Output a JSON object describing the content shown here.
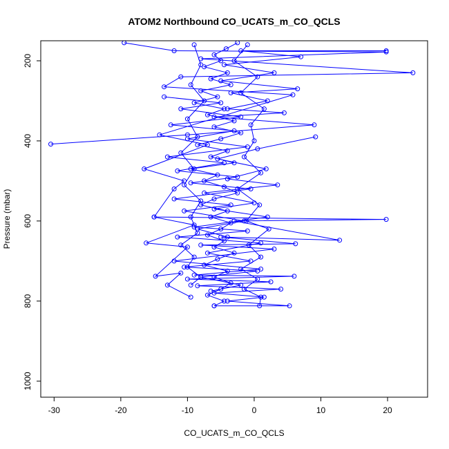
{
  "chart_data": {
    "type": "line",
    "title": "ATOM2 Northbound CO_UCATS_m_CO_QCLS",
    "xlabel": "CO_UCATS_m_CO_QCLS",
    "ylabel": "Pressure (mbar)",
    "xlim": [
      -32,
      26
    ],
    "ylim": [
      1040,
      150
    ],
    "y_reversed": true,
    "x_ticks": [
      -30,
      -20,
      -10,
      0,
      10,
      20
    ],
    "y_ticks": [
      200,
      400,
      600,
      800,
      1000
    ],
    "x_tick_labels": [
      "-30",
      "-20",
      "-10",
      "0",
      "10",
      "20"
    ],
    "y_tick_labels": [
      "200",
      "400",
      "600",
      "800",
      "1000"
    ],
    "marker": "open-circle",
    "grid": false,
    "legend": "none",
    "colors": {
      "series": "#0000ff"
    },
    "series": [
      {
        "points": [
          [
            -2.5,
            155
          ],
          [
            -4.2,
            170
          ],
          [
            -6.0,
            185
          ],
          [
            -5.0,
            200
          ],
          [
            -7.5,
            215
          ],
          [
            -4.0,
            230
          ],
          [
            -6.5,
            245
          ],
          [
            -3.5,
            260
          ],
          [
            -8.0,
            275
          ],
          [
            -5.5,
            290
          ],
          [
            -9.0,
            305
          ],
          [
            -4.5,
            320
          ],
          [
            -7.0,
            335
          ],
          [
            -3.0,
            350
          ],
          [
            -6.0,
            365
          ],
          [
            -2.0,
            380
          ],
          [
            -5.0,
            395
          ],
          [
            -8.5,
            410
          ],
          [
            -4.0,
            425
          ],
          [
            -6.5,
            440
          ],
          [
            -3.0,
            455
          ],
          [
            -9.5,
            470
          ],
          [
            -5.5,
            485
          ],
          [
            -7.5,
            500
          ],
          [
            -4.5,
            515
          ],
          [
            -2.5,
            530
          ],
          [
            -6.0,
            545
          ],
          [
            -8.0,
            560
          ],
          [
            -4.0,
            575
          ],
          [
            -6.5,
            590
          ],
          [
            -3.5,
            605
          ],
          [
            -5.0,
            620
          ],
          [
            -7.0,
            635
          ],
          [
            -4.5,
            650
          ],
          [
            -6.0,
            665
          ],
          [
            -3.0,
            680
          ],
          [
            -5.5,
            695
          ],
          [
            -7.5,
            710
          ],
          [
            -4.0,
            725
          ],
          [
            -6.0,
            740
          ],
          [
            -3.5,
            755
          ],
          [
            -5.0,
            770
          ],
          [
            -7.0,
            785
          ],
          [
            -4.5,
            800
          ],
          [
            -6.0,
            812
          ]
        ]
      },
      {
        "points": [
          [
            -19.5,
            155
          ],
          [
            -12.0,
            175
          ],
          [
            19.8,
            178
          ],
          [
            -8.0,
            195
          ],
          [
            23.8,
            230
          ],
          [
            -11.0,
            240
          ],
          [
            -13.5,
            265
          ],
          [
            5.8,
            285
          ],
          [
            -14.2,
            385
          ],
          [
            -7.0,
            410
          ],
          [
            -16.5,
            470
          ],
          [
            -10.5,
            500
          ],
          [
            -12.0,
            520
          ],
          [
            -15.0,
            590
          ],
          [
            -9.0,
            610
          ],
          [
            -16.2,
            655
          ],
          [
            -10.0,
            665
          ],
          [
            -14.8,
            738
          ],
          [
            -11.0,
            730
          ],
          [
            -13.0,
            760
          ],
          [
            -9.5,
            790
          ]
        ]
      },
      {
        "points": [
          [
            -30.5,
            408
          ],
          [
            -10.0,
            385
          ],
          [
            9.0,
            360
          ],
          [
            -6.0,
            340
          ],
          [
            4.5,
            330
          ],
          [
            -4.0,
            320
          ],
          [
            2.0,
            300
          ],
          [
            -3.5,
            280
          ],
          [
            6.5,
            270
          ],
          [
            -5.0,
            250
          ],
          [
            3.0,
            230
          ],
          [
            -4.5,
            210
          ],
          [
            7.0,
            190
          ],
          [
            -2.0,
            175
          ],
          [
            19.8,
            175
          ]
        ]
      },
      {
        "points": [
          [
            -15.0,
            590
          ],
          [
            19.8,
            596
          ],
          [
            -3.0,
            600
          ],
          [
            12.8,
            648
          ],
          [
            -5.0,
            640
          ],
          [
            6.2,
            657
          ],
          [
            -8.0,
            660
          ],
          [
            3.0,
            670
          ],
          [
            -12.0,
            700
          ],
          [
            1.0,
            720
          ],
          [
            -9.0,
            735
          ],
          [
            6.0,
            738
          ],
          [
            -10.0,
            745
          ],
          [
            2.5,
            752
          ],
          [
            -8.5,
            762
          ],
          [
            4.0,
            770
          ],
          [
            -6.0,
            780
          ],
          [
            1.5,
            790
          ],
          [
            -4.0,
            800
          ],
          [
            5.3,
            812
          ],
          [
            -6.0,
            812
          ]
        ]
      },
      {
        "points": [
          [
            9.2,
            390
          ],
          [
            0.5,
            420
          ],
          [
            -5.5,
            445
          ],
          [
            1.8,
            470
          ],
          [
            -4.0,
            495
          ],
          [
            3.5,
            510
          ],
          [
            -7.5,
            530
          ],
          [
            0.0,
            555
          ],
          [
            -6.0,
            570
          ],
          [
            2.0,
            590
          ],
          [
            -9.0,
            615
          ],
          [
            -1.0,
            625
          ],
          [
            -11.5,
            640
          ],
          [
            1.0,
            655
          ],
          [
            -7.0,
            680
          ],
          [
            -0.5,
            700
          ],
          [
            -10.5,
            715
          ],
          [
            0.5,
            725
          ],
          [
            -8.0,
            740
          ],
          [
            -2.0,
            760
          ],
          [
            -6.5,
            775
          ]
        ]
      },
      {
        "points": [
          [
            -13.5,
            290
          ],
          [
            -5.0,
            305
          ],
          [
            -11.0,
            320
          ],
          [
            -2.0,
            340
          ],
          [
            -12.5,
            360
          ],
          [
            -3.0,
            375
          ],
          [
            -10.0,
            395
          ],
          [
            -1.0,
            415
          ],
          [
            -13.0,
            440
          ],
          [
            -4.5,
            455
          ],
          [
            -11.5,
            475
          ],
          [
            -2.5,
            490
          ],
          [
            -9.5,
            505
          ],
          [
            -0.5,
            520
          ],
          [
            -12.0,
            545
          ],
          [
            -3.5,
            560
          ],
          [
            -10.5,
            575
          ],
          [
            -1.5,
            600
          ],
          [
            -8.5,
            620
          ],
          [
            -4.0,
            640
          ]
        ]
      },
      {
        "points": [
          [
            -1.0,
            160
          ],
          [
            -3.0,
            200
          ],
          [
            0.5,
            240
          ],
          [
            -2.0,
            280
          ],
          [
            1.5,
            320
          ],
          [
            -0.5,
            360
          ],
          [
            0.0,
            400
          ],
          [
            -1.5,
            440
          ],
          [
            1.0,
            480
          ],
          [
            -2.5,
            520
          ],
          [
            0.8,
            560
          ],
          [
            -1.2,
            600
          ],
          [
            2.2,
            620
          ],
          [
            -0.8,
            660
          ],
          [
            1.0,
            690
          ],
          [
            -2.0,
            720
          ],
          [
            0.5,
            745
          ],
          [
            -1.5,
            770
          ],
          [
            1.0,
            790
          ],
          [
            0.8,
            812
          ]
        ]
      },
      {
        "points": [
          [
            -9.0,
            160
          ],
          [
            -8.0,
            210
          ],
          [
            -9.5,
            260
          ],
          [
            -7.5,
            300
          ],
          [
            -10.0,
            345
          ],
          [
            -8.5,
            390
          ],
          [
            -11.0,
            430
          ],
          [
            -9.0,
            470
          ],
          [
            -10.5,
            510
          ],
          [
            -8.0,
            550
          ],
          [
            -9.5,
            590
          ],
          [
            -8.5,
            630
          ],
          [
            -11.0,
            660
          ],
          [
            -9.0,
            690
          ],
          [
            -10.0,
            715
          ],
          [
            -8.0,
            740
          ],
          [
            -9.5,
            760
          ]
        ]
      }
    ]
  }
}
